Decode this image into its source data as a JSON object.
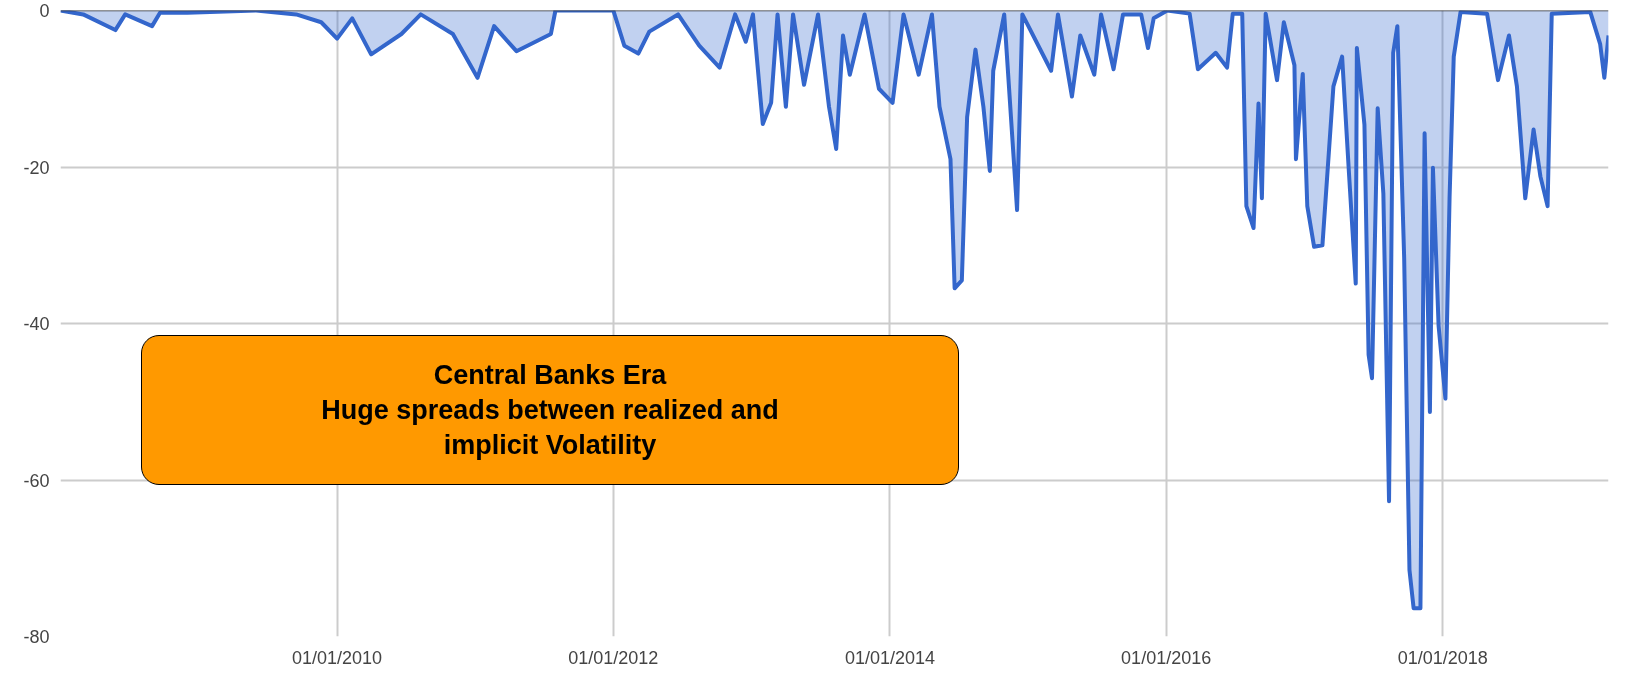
{
  "chart_data": {
    "type": "area",
    "x": [
      "2008-01-01",
      "2008-03-01",
      "2008-05-25",
      "2008-06-20",
      "2008-08-30",
      "2008-09-20",
      "2008-12-01",
      "2009-06-01",
      "2009-09-15",
      "2009-11-20",
      "2010-01-01",
      "2010-02-10",
      "2010-04-01",
      "2010-06-20",
      "2010-08-10",
      "2010-11-03",
      "2011-01-07",
      "2011-02-20",
      "2011-04-20",
      "2011-07-20",
      "2011-08-01",
      "2012-01-01",
      "2012-01-30",
      "2012-03-07",
      "2012-04-05",
      "2012-06-20",
      "2012-08-15",
      "2012-10-08",
      "2012-11-18",
      "2012-12-16",
      "2013-01-04",
      "2013-01-30",
      "2013-02-21",
      "2013-03-10",
      "2013-04-01",
      "2013-04-20",
      "2013-05-19",
      "2013-06-25",
      "2013-07-24",
      "2013-08-12",
      "2013-08-30",
      "2013-09-17",
      "2013-10-26",
      "2013-12-03",
      "2014-01-08",
      "2014-02-06",
      "2014-03-18",
      "2014-04-22",
      "2014-05-12",
      "2014-06-10",
      "2014-06-21",
      "2014-07-10",
      "2014-07-24",
      "2014-08-15",
      "2014-09-05",
      "2014-09-22",
      "2014-10-01",
      "2014-10-30",
      "2014-12-03",
      "2014-12-17",
      "2015-03-03",
      "2015-03-21",
      "2015-04-27",
      "2015-05-19",
      "2015-06-25",
      "2015-07-13",
      "2015-08-15",
      "2015-09-09",
      "2015-10-27",
      "2015-11-14",
      "2015-11-29",
      "2016-01-04",
      "2016-03-03",
      "2016-03-25",
      "2016-05-11",
      "2016-06-10",
      "2016-06-25",
      "2016-07-20",
      "2016-07-31",
      "2016-08-19",
      "2016-09-01",
      "2016-09-10",
      "2016-09-20",
      "2016-10-20",
      "2016-11-07",
      "2016-12-05",
      "2016-12-09",
      "2016-12-27",
      "2017-01-08",
      "2017-01-26",
      "2017-02-17",
      "2017-03-18",
      "2017-04-10",
      "2017-04-28",
      "2017-05-16",
      "2017-05-19",
      "2017-06-08",
      "2017-06-19",
      "2017-06-28",
      "2017-07-13",
      "2017-07-28",
      "2017-08-12",
      "2017-08-23",
      "2017-09-03",
      "2017-09-21",
      "2017-10-05",
      "2017-10-16",
      "2017-11-03",
      "2017-11-14",
      "2017-11-28",
      "2017-12-06",
      "2017-12-21",
      "2018-01-08",
      "2018-01-19",
      "2018-01-30",
      "2018-02-17",
      "2018-04-28",
      "2018-05-27",
      "2018-06-25",
      "2018-07-16",
      "2018-08-07",
      "2018-08-29",
      "2018-09-16",
      "2018-10-05",
      "2018-10-16",
      "2019-01-26",
      "2019-02-21",
      "2019-03-04",
      "2019-03-15"
    ],
    "series": [
      {
        "color": "#3366cc",
        "values": [
          0,
          -0.5,
          -2.5,
          -0.5,
          -2,
          -0.3,
          -0.3,
          0,
          -0.5,
          -1.5,
          -3.6,
          -1,
          -5.6,
          -3,
          -0.5,
          -3,
          -8.6,
          -2,
          -5.2,
          -3,
          0,
          0,
          -4.5,
          -5.5,
          -2.7,
          -0.5,
          -4.5,
          -7.3,
          -0.5,
          -4,
          -0.5,
          -14.5,
          -11.8,
          -0.5,
          -12.3,
          -0.5,
          -9.5,
          -0.5,
          -12.3,
          -17.7,
          -3.2,
          -8.2,
          -0.5,
          -10,
          -11.8,
          -0.5,
          -8.2,
          -0.5,
          -12.3,
          -19,
          -35.5,
          -34.5,
          -13.6,
          -5,
          -12.3,
          -20.5,
          -7.7,
          -0.5,
          -25.5,
          -0.5,
          -7.7,
          -0.5,
          -11,
          -3.2,
          -8.2,
          -0.5,
          -7.5,
          -0.5,
          -0.5,
          -4.8,
          -1,
          0,
          -0.4,
          -7.5,
          -5.4,
          -7.3,
          -0.4,
          -0.4,
          -25,
          -27.8,
          -11.9,
          -24,
          -0.4,
          -8.9,
          -1.5,
          -7,
          -19,
          -8.1,
          -25,
          -30.2,
          -30,
          -9.7,
          -5.9,
          -20.7,
          -34.9,
          -4.8,
          -14.6,
          -44,
          -47,
          -12.5,
          -23.4,
          -62.7,
          -5.4,
          -2,
          -31.6,
          -71.5,
          -76.4,
          -76.4,
          -15.7,
          -51.3,
          -20.1,
          -40.3,
          -49.6,
          -23.9,
          -5.9,
          -0.2,
          -0.4,
          -8.9,
          -3.2,
          -9.7,
          -24,
          -15.2,
          -21.2,
          -25,
          -0.4,
          -0.2,
          -4.3,
          -8.6,
          -3.2
        ]
      }
    ],
    "xlim": [
      "2008-01-01",
      "2019-03-15"
    ],
    "xticks": [
      {
        "value": "2010-01-01",
        "label": "01/01/2010"
      },
      {
        "value": "2012-01-01",
        "label": "01/01/2012"
      },
      {
        "value": "2014-01-01",
        "label": "01/01/2014"
      },
      {
        "value": "2016-01-01",
        "label": "01/01/2016"
      },
      {
        "value": "2018-01-01",
        "label": "01/01/2018"
      }
    ],
    "ylim": [
      -80,
      0
    ],
    "yticks": [
      0,
      -20,
      -40,
      -60,
      -80
    ],
    "grid": true,
    "annotations": [
      "Central Banks Era\nHuge spreads between realized and\nimplicit Volatility"
    ]
  }
}
